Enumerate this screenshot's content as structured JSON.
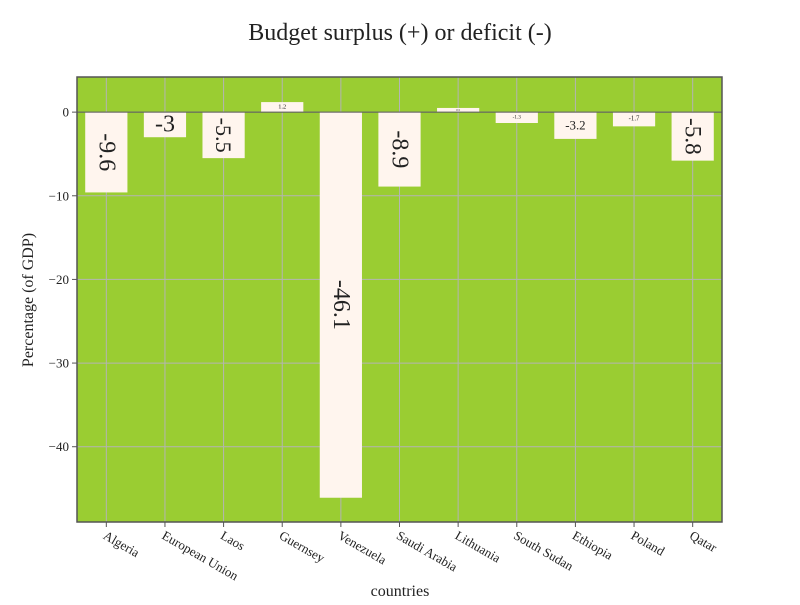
{
  "chart_data": {
    "type": "bar",
    "title": "Budget surplus (+) or deficit (-)",
    "xlabel": "countries",
    "ylabel": "Percentage (of GDP)",
    "categories": [
      "Algeria",
      "European Union",
      "Laos",
      "Guernsey",
      "Venezuela",
      "Saudi Arabia",
      "Lithuania",
      "South Sudan",
      "Ethiopia",
      "Poland",
      "Qatar"
    ],
    "values": [
      -9.6,
      -3,
      -5.5,
      1.2,
      -46.1,
      -8.9,
      0.5,
      -1.3,
      -3.2,
      -1.7,
      -5.8
    ],
    "value_labels": [
      "-9.6",
      "-3",
      "-5.5",
      "1.2",
      "-46.1",
      "-8.9",
      "0.5",
      "-1.3",
      "-3.2",
      "-1.7",
      "-5.8"
    ],
    "yticks": [
      0,
      -10,
      -20,
      -30,
      -40
    ],
    "ytick_labels": [
      "0",
      "−10",
      "−20",
      "−30",
      "−40"
    ],
    "ylim": [
      -49,
      4.2
    ],
    "grid": true,
    "colors": {
      "plot_background": "#9acd32",
      "bar_fill": "#fff5ee",
      "grid": "#b4b4b4",
      "axis": "#555555",
      "text": "#222222"
    }
  }
}
